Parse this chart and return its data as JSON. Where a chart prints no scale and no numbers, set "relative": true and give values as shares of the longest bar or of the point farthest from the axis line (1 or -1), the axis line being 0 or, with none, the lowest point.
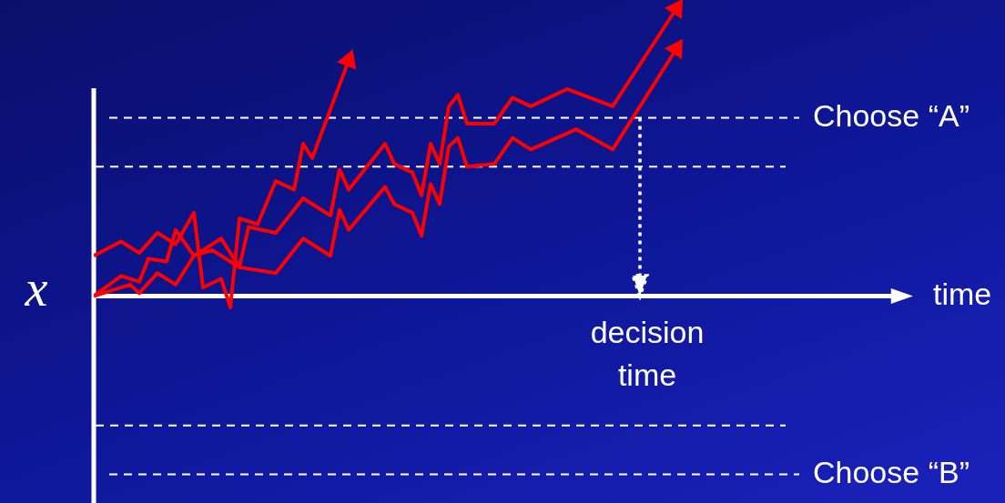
{
  "chart_data": {
    "type": "line",
    "relative": true,
    "xlabel": "time",
    "ylabel": "x",
    "marker": "none",
    "categories": [
      null,
      null,
      null,
      null,
      null,
      null,
      null,
      null,
      null,
      null,
      null,
      null,
      null,
      null,
      null,
      null,
      null,
      null,
      null,
      null,
      null,
      null,
      null,
      null,
      null,
      null,
      null,
      null,
      null,
      null,
      null,
      null,
      null,
      null,
      null,
      null,
      null,
      null,
      null,
      null,
      null,
      null,
      null,
      null,
      null,
      null,
      null,
      null,
      null,
      null,
      null,
      null,
      null,
      null,
      null,
      null,
      null,
      null,
      null,
      null,
      null,
      null,
      null,
      null,
      null,
      null,
      null,
      null,
      null,
      null,
      null,
      null,
      null,
      null,
      null,
      null,
      null,
      null,
      null,
      null,
      null,
      null,
      null,
      null,
      null,
      null,
      null,
      null,
      null,
      null,
      null
    ],
    "series": [
      {
        "color": "#ff0000",
        "values": [
          0.14,
          null,
          null,
          0.19,
          null,
          0.15,
          null,
          0.22,
          null,
          0.18,
          null,
          0.29,
          0.03,
          null,
          0.06,
          -0.04,
          0.27,
          null,
          0.25,
          null,
          0.4,
          null,
          0.37,
          0.53,
          0.48,
          null,
          null,
          null,
          0.82,
          null,
          null,
          null,
          null,
          null,
          null,
          null,
          null,
          null,
          null,
          null,
          null,
          null,
          null,
          null,
          null,
          null,
          null,
          null,
          null,
          null,
          null,
          null,
          null,
          null,
          null,
          null,
          null,
          null,
          null,
          null,
          null,
          null,
          null,
          null,
          null,
          null,
          null,
          null,
          null,
          null,
          null,
          null,
          null,
          null,
          null,
          null,
          null,
          null,
          null,
          null,
          null,
          null,
          null,
          null,
          null,
          null,
          null,
          null,
          null,
          null,
          null
        ]
      },
      {
        "color": "#ff0000",
        "values": [
          0,
          null,
          null,
          0.07,
          null,
          0.05,
          0.13,
          null,
          0.12,
          0.23,
          null,
          0.14,
          null,
          0.18,
          0.2,
          null,
          0.1,
          0.24,
          null,
          null,
          0.22,
          null,
          null,
          0.34,
          null,
          null,
          0.28,
          0.44,
          0.37,
          null,
          null,
          null,
          0.53,
          0.46,
          null,
          0.43,
          0.35,
          0.53,
          0.46,
          0.66,
          0.7,
          0.6,
          null,
          null,
          0.6,
          null,
          0.69,
          null,
          0.66,
          null,
          null,
          null,
          0.72,
          null,
          null,
          null,
          null,
          0.66,
          null,
          null,
          null,
          null,
          null,
          null,
          1.0,
          null,
          null,
          null,
          null,
          null,
          null,
          null,
          null,
          null,
          null,
          null,
          null,
          null,
          null,
          null,
          null,
          null,
          null,
          null,
          null,
          null,
          null,
          null,
          null,
          null,
          null
        ]
      },
      {
        "color": "#ff0000",
        "values": [
          0,
          null,
          null,
          null,
          0.04,
          0.01,
          null,
          0.08,
          null,
          0.04,
          null,
          0.14,
          null,
          0.16,
          null,
          0.12,
          0.1,
          null,
          null,
          null,
          0.08,
          null,
          null,
          0.2,
          null,
          null,
          0.14,
          0.3,
          0.23,
          null,
          null,
          null,
          0.38,
          0.32,
          null,
          0.29,
          0.21,
          0.39,
          0.32,
          0.52,
          0.55,
          0.45,
          null,
          null,
          0.46,
          null,
          0.55,
          null,
          0.51,
          null,
          null,
          null,
          null,
          0.58,
          null,
          null,
          null,
          0.51,
          null,
          null,
          null,
          null,
          null,
          null,
          0.86,
          null,
          null,
          null,
          null,
          null,
          null,
          null,
          null,
          null,
          null,
          null,
          null,
          null,
          null,
          null,
          null,
          null,
          null,
          null,
          null,
          null,
          null,
          null,
          null,
          null,
          null
        ]
      }
    ],
    "ref_lines": [
      {
        "axis": "y",
        "value": 0.62,
        "label": "Choose “A”",
        "line_style": "dashed",
        "color": "#ffffff"
      },
      {
        "axis": "y",
        "value": 0.45,
        "line_style": "dashed",
        "color": "#ffffff"
      },
      {
        "axis": "y",
        "value": -0.45,
        "line_style": "dashed",
        "color": "#ffffff"
      },
      {
        "axis": "y",
        "value": -0.62,
        "label": "Choose “B”",
        "line_style": "dashed",
        "color": "#ffffff"
      }
    ],
    "annotations": [
      "decision time"
    ]
  }
}
